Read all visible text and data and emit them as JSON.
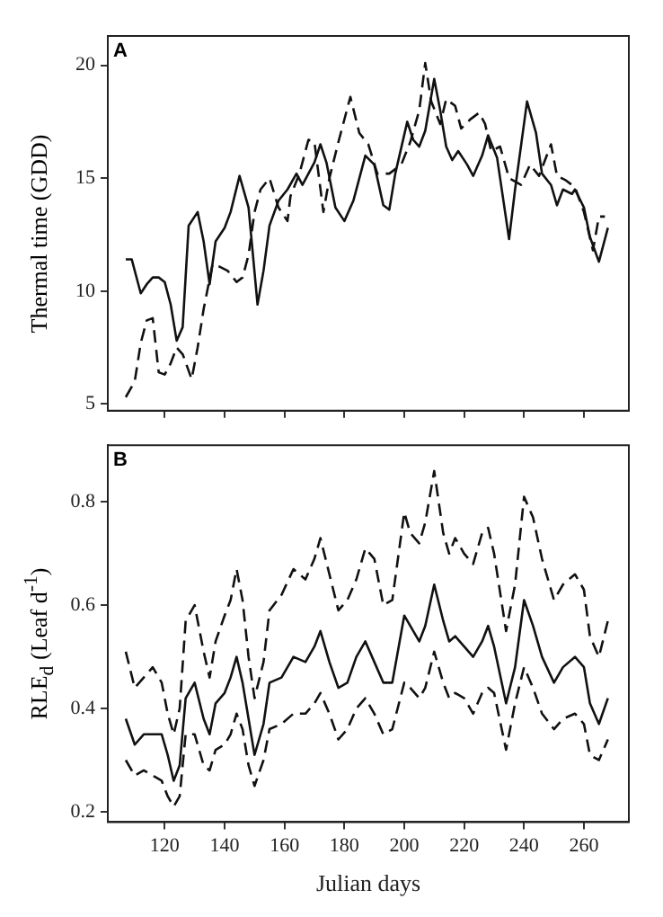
{
  "chart_data": [
    {
      "type": "line",
      "annotations": [
        "A"
      ],
      "ylabel": "Thermal time (GDD)",
      "xlim": [
        101,
        275
      ],
      "ylim": [
        4.7,
        21.3
      ],
      "xticks": [
        120,
        140,
        160,
        180,
        200,
        220,
        240,
        260
      ],
      "yticks": [
        5,
        10,
        15,
        20
      ],
      "tick_labels": "y",
      "grid": false,
      "marker": "none",
      "series": [
        {
          "color": "#111111",
          "line_style": "solid",
          "x": [
            107,
            109,
            112,
            114,
            116,
            118,
            120,
            122,
            124,
            126,
            128,
            131,
            133,
            135,
            137,
            140,
            142,
            145,
            148,
            151,
            153,
            155,
            158,
            161,
            164,
            166,
            168,
            170,
            172,
            174,
            177,
            180,
            183,
            187,
            190,
            193,
            195,
            197,
            201,
            203,
            205,
            207,
            210,
            212,
            214,
            216,
            218,
            221,
            223,
            226,
            228,
            231,
            235,
            237,
            241,
            244,
            246,
            249,
            251,
            253,
            256,
            257,
            260,
            262,
            265,
            268
          ],
          "values": [
            11.4,
            11.4,
            9.9,
            10.3,
            10.6,
            10.6,
            10.4,
            9.4,
            7.8,
            8.4,
            12.9,
            13.5,
            12.2,
            10.3,
            12.2,
            12.8,
            13.5,
            15.1,
            13.7,
            9.4,
            10.9,
            12.9,
            14,
            14.5,
            15.2,
            14.7,
            15.2,
            15.7,
            16.5,
            15.7,
            13.7,
            13.1,
            14,
            16,
            15.6,
            13.8,
            13.6,
            15.2,
            17.5,
            16.7,
            16.4,
            17.1,
            19.4,
            18,
            16.4,
            15.8,
            16.2,
            15.6,
            15.1,
            16,
            16.9,
            15.9,
            12.3,
            14.5,
            18.4,
            17,
            15.2,
            14.7,
            13.8,
            14.5,
            14.3,
            14.5,
            13.7,
            12.4,
            11.3,
            12.8
          ]
        },
        {
          "color": "#111111",
          "line_style": "dashed",
          "x": [
            107,
            110,
            112,
            114,
            116,
            118,
            120,
            122,
            124,
            126,
            129,
            131,
            133,
            136,
            138,
            141,
            144,
            146,
            148,
            150,
            152,
            155,
            158,
            161,
            162,
            165,
            168,
            170,
            173,
            175,
            178,
            182,
            185,
            188,
            191,
            195,
            199,
            202,
            205,
            207,
            209,
            212,
            214,
            217,
            219,
            222,
            225,
            227,
            229,
            232,
            235,
            239,
            242,
            245,
            249,
            251,
            254,
            257,
            260,
            263,
            265,
            267
          ],
          "values": [
            5.3,
            6,
            7.7,
            8.7,
            8.8,
            6.4,
            6.3,
            6.8,
            7.5,
            7.2,
            6.1,
            7.5,
            9.2,
            11.2,
            11.1,
            10.9,
            10.4,
            10.6,
            11.6,
            13.5,
            14.5,
            15,
            13.7,
            13.1,
            14.2,
            15.2,
            16.7,
            16.6,
            13.5,
            15,
            16.6,
            18.6,
            17,
            16.5,
            15.2,
            15.2,
            15.6,
            16.6,
            18,
            20.1,
            18.4,
            17.4,
            18.5,
            18.2,
            17.2,
            17.6,
            17.9,
            17.4,
            16.2,
            16.4,
            15,
            14.7,
            15.6,
            15.1,
            16.5,
            15.1,
            14.9,
            14.6,
            13.5,
            11.8,
            13.3,
            13.3
          ]
        }
      ]
    },
    {
      "type": "line",
      "annotations": [
        "B"
      ],
      "xlabel": "Julian days",
      "ylabel": "RLE$_{d}$ (Leaf d$^{-1}$)",
      "xlim": [
        101,
        275
      ],
      "ylim": [
        0.18,
        0.91
      ],
      "xticks": [
        120,
        140,
        160,
        180,
        200,
        220,
        240,
        260
      ],
      "yticks": [
        0.2,
        0.4,
        0.6,
        0.8
      ],
      "grid": false,
      "marker": "none",
      "x": [
        107,
        110,
        113,
        116,
        119,
        121,
        123,
        125,
        127,
        130,
        133,
        135,
        137,
        140,
        142,
        144,
        146,
        148,
        150,
        153,
        155,
        159,
        163,
        167,
        170,
        172,
        175,
        178,
        181,
        184,
        187,
        190,
        193,
        196,
        200,
        202,
        205,
        207,
        210,
        213,
        215,
        217,
        220,
        223,
        226,
        228,
        230,
        234,
        237,
        240,
        243,
        246,
        250,
        253,
        257,
        260,
        262,
        265,
        268
      ],
      "series": [
        {
          "color": "#111111",
          "line_style": "solid",
          "values": [
            0.38,
            0.33,
            0.35,
            0.35,
            0.35,
            0.31,
            0.26,
            0.29,
            0.42,
            0.45,
            0.38,
            0.35,
            0.41,
            0.43,
            0.46,
            0.5,
            0.45,
            0.38,
            0.31,
            0.37,
            0.45,
            0.46,
            0.5,
            0.49,
            0.52,
            0.55,
            0.49,
            0.44,
            0.45,
            0.5,
            0.53,
            0.49,
            0.45,
            0.45,
            0.58,
            0.56,
            0.53,
            0.56,
            0.64,
            0.57,
            0.53,
            0.54,
            0.52,
            0.5,
            0.53,
            0.56,
            0.52,
            0.41,
            0.48,
            0.61,
            0.56,
            0.5,
            0.45,
            0.48,
            0.5,
            0.48,
            0.41,
            0.37,
            0.42
          ]
        },
        {
          "color": "#111111",
          "line_style": "dashed",
          "values": [
            0.51,
            0.44,
            0.46,
            0.48,
            0.45,
            0.39,
            0.35,
            0.4,
            0.57,
            0.6,
            0.51,
            0.46,
            0.53,
            0.58,
            0.61,
            0.67,
            0.61,
            0.5,
            0.42,
            0.49,
            0.59,
            0.62,
            0.67,
            0.65,
            0.69,
            0.73,
            0.66,
            0.59,
            0.61,
            0.65,
            0.71,
            0.69,
            0.6,
            0.61,
            0.78,
            0.74,
            0.72,
            0.76,
            0.86,
            0.74,
            0.7,
            0.73,
            0.7,
            0.68,
            0.74,
            0.75,
            0.7,
            0.55,
            0.64,
            0.81,
            0.77,
            0.69,
            0.61,
            0.64,
            0.66,
            0.63,
            0.54,
            0.5,
            0.57
          ]
        },
        {
          "color": "#111111",
          "line_style": "dashed",
          "values": [
            0.3,
            0.27,
            0.28,
            0.27,
            0.26,
            0.23,
            0.21,
            0.23,
            0.35,
            0.35,
            0.29,
            0.28,
            0.32,
            0.33,
            0.35,
            0.39,
            0.36,
            0.29,
            0.25,
            0.3,
            0.36,
            0.37,
            0.39,
            0.39,
            0.41,
            0.43,
            0.39,
            0.34,
            0.36,
            0.4,
            0.42,
            0.39,
            0.35,
            0.36,
            0.45,
            0.44,
            0.42,
            0.44,
            0.51,
            0.45,
            0.42,
            0.43,
            0.42,
            0.39,
            0.43,
            0.44,
            0.43,
            0.32,
            0.41,
            0.48,
            0.44,
            0.39,
            0.36,
            0.38,
            0.39,
            0.37,
            0.31,
            0.3,
            0.34
          ]
        }
      ]
    }
  ]
}
